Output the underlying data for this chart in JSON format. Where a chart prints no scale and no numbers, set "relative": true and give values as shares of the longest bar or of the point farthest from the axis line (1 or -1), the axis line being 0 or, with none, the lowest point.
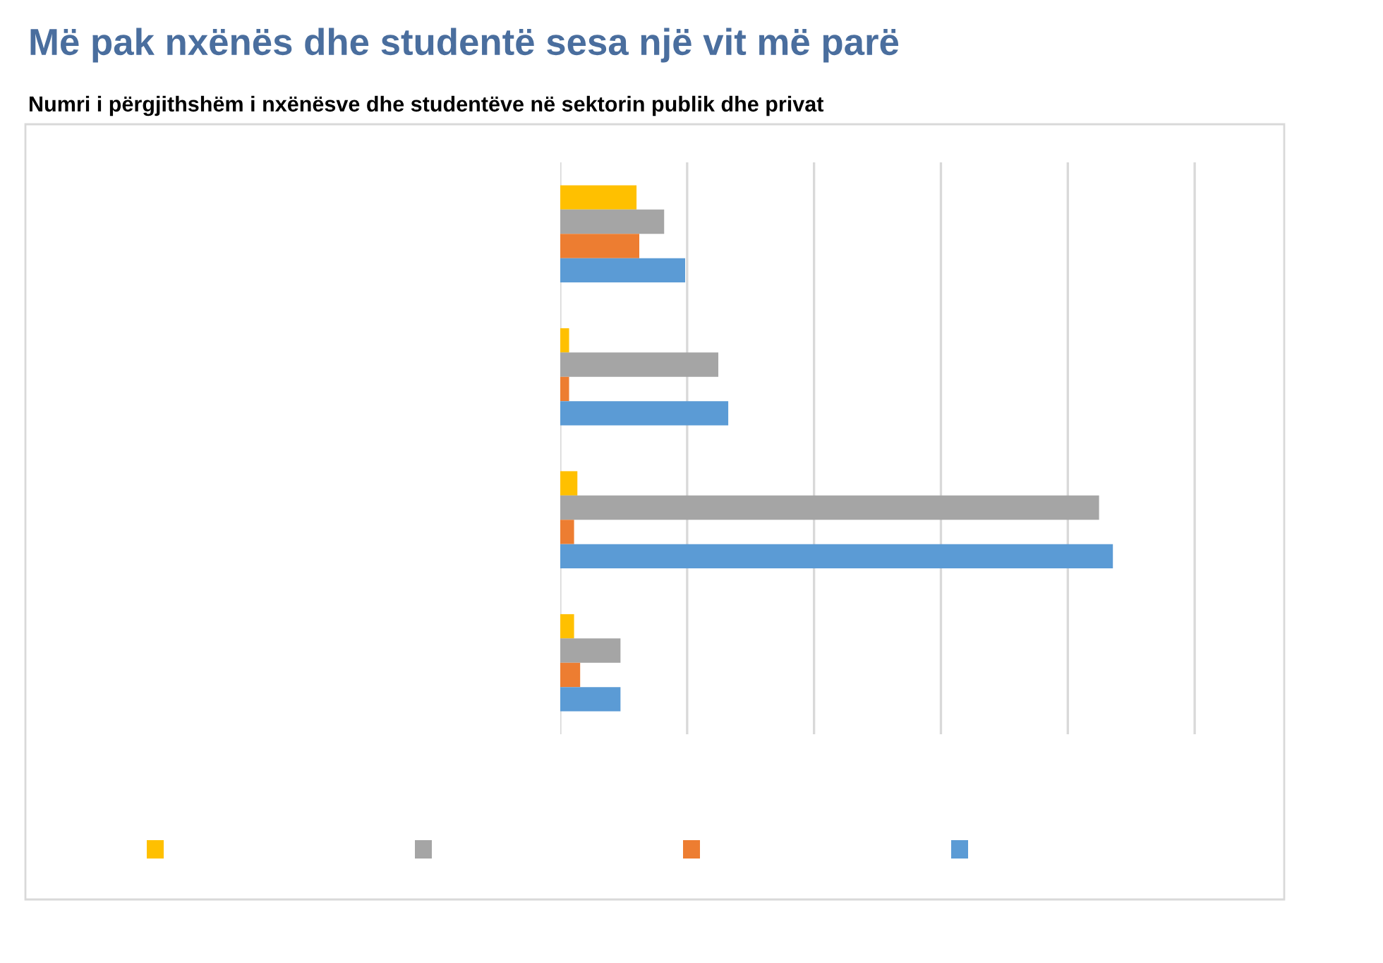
{
  "chart_data": {
    "type": "bar",
    "orientation": "horizontal",
    "relative": true,
    "title": "Më pak nxënës dhe studentë sesa një vit më parë",
    "subtitle": "Numri i përgjithshëm i nxënësve dhe studentëve në sektorin publik dhe privat",
    "categories": [
      null,
      null,
      null,
      null
    ],
    "series": [
      {
        "color": "#ffc000",
        "values": [
          0.138,
          0.016,
          0.031,
          0.025
        ]
      },
      {
        "color": "#a5a5a5",
        "values": [
          0.188,
          0.286,
          0.975,
          0.109
        ]
      },
      {
        "color": "#ed7d31",
        "values": [
          0.143,
          0.016,
          0.025,
          0.036
        ]
      },
      {
        "color": "#5b9bd5",
        "values": [
          0.226,
          0.304,
          1,
          0.109
        ]
      }
    ],
    "grid": "x"
  }
}
